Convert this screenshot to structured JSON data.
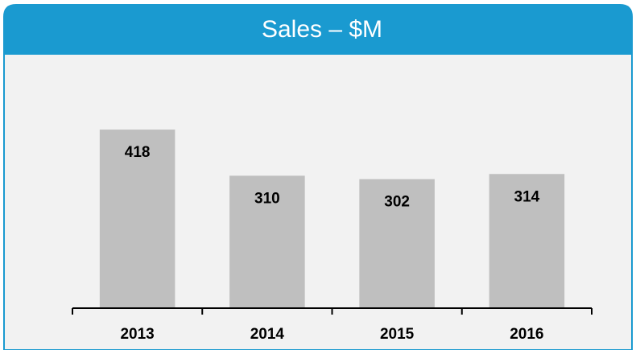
{
  "chart_data": {
    "type": "bar",
    "title": "Sales – $M",
    "categories": [
      "2013",
      "2014",
      "2015",
      "2016"
    ],
    "values": [
      418,
      310,
      302,
      314
    ],
    "color": "#bfbfbf"
  }
}
